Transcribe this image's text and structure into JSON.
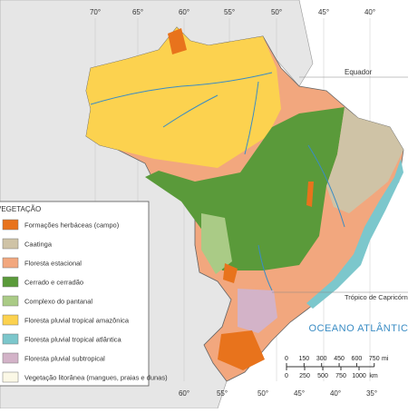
{
  "legend": {
    "title": "VEGETAÇÃO",
    "items": [
      {
        "label": "Formações herbáceas (campo)",
        "color": "#e8731c"
      },
      {
        "label": "Caatinga",
        "color": "#cfc3a6"
      },
      {
        "label": "Floresta estacional",
        "color": "#f2a77e"
      },
      {
        "label": "Cerrado e cerradão",
        "color": "#5a9a3a"
      },
      {
        "label": "Complexo do pantanal",
        "color": "#aacb86"
      },
      {
        "label": "Floresta pluvial tropical amazônica",
        "color": "#fcd24f"
      },
      {
        "label": "Floresta pluvial tropical atlântica",
        "color": "#7cc7cc"
      },
      {
        "label": "Floresta pluvial subtropical",
        "color": "#d3b3c8"
      },
      {
        "label": "Vegetação litorânea (mangues, praias e dunas)",
        "color": "#fbf8e6"
      }
    ]
  },
  "longitudes_top": [
    "70°",
    "65°",
    "60°",
    "55°",
    "50°",
    "45°",
    "40°"
  ],
  "longitudes_bottom": [
    "60°",
    "55°",
    "50°",
    "45°",
    "40°",
    "35°"
  ],
  "labels": {
    "equator": "Equador",
    "tropic": "Trópico de Capricórnio",
    "ocean": "OCEANO ATLÂNTICO"
  },
  "scale_bar": {
    "miles": {
      "ticks": [
        0,
        150,
        300,
        450,
        600,
        750
      ],
      "unit": "mi"
    },
    "km": {
      "ticks": [
        0,
        250,
        500,
        750,
        1000
      ],
      "unit": "km"
    }
  }
}
